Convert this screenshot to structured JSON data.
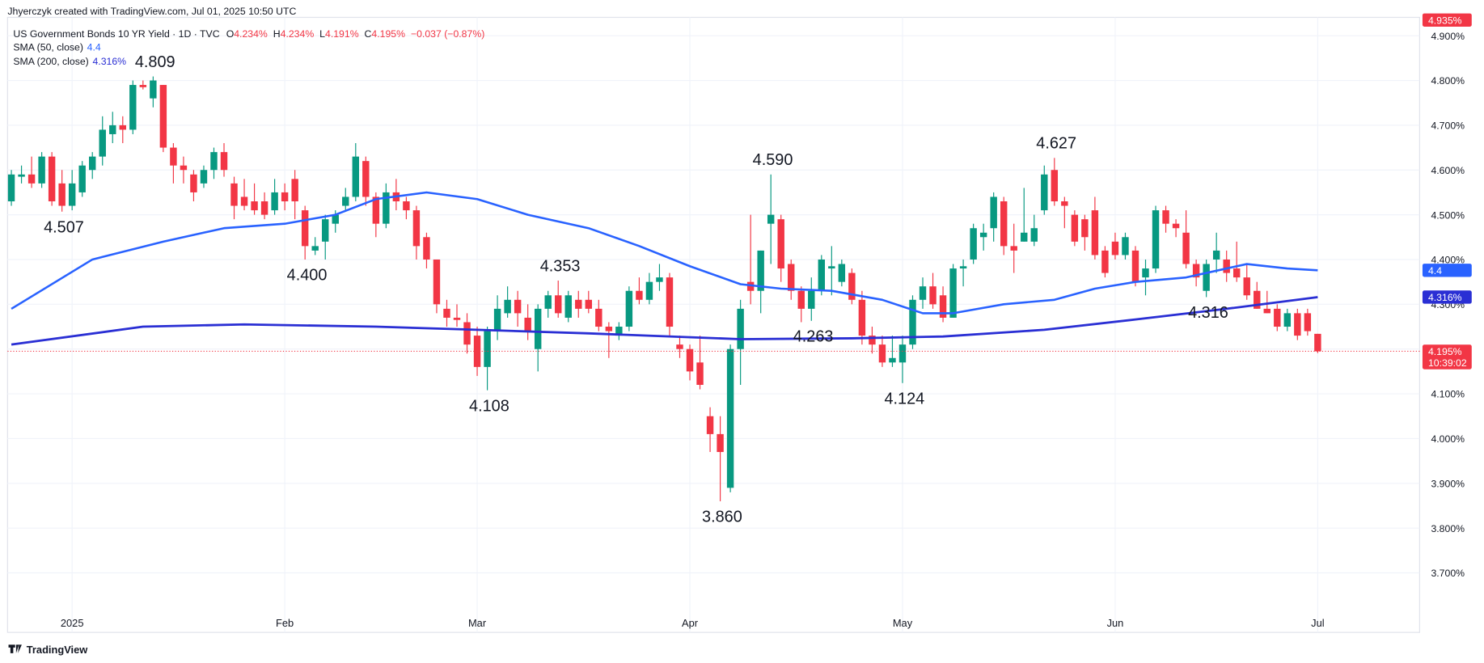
{
  "header": {
    "credit": "Jhyerczyk created with TradingView.com, Jul 01, 2025 10:50 UTC",
    "brand": "TradingView"
  },
  "chart_data": {
    "type": "candlestick",
    "title": "US Government Bonds 10 YR Yield · 1D · TVC",
    "ohlc_legend": [
      {
        "key": "O",
        "value": "4.234%"
      },
      {
        "key": "H",
        "value": "4.234%"
      },
      {
        "key": "L",
        "value": "4.191%"
      },
      {
        "key": "C",
        "value": "4.195%"
      }
    ],
    "change": "−0.037 (−0.87%)",
    "categories": [
      null,
      null,
      null,
      null,
      null,
      null,
      "2025",
      null,
      null,
      null,
      null,
      null,
      null,
      null,
      null,
      null,
      null,
      null,
      null,
      null,
      null,
      null,
      null,
      null,
      null,
      null,
      null,
      "Feb",
      null,
      null,
      null,
      null,
      null,
      null,
      null,
      null,
      null,
      null,
      null,
      null,
      null,
      null,
      null,
      null,
      null,
      null,
      "Mar",
      null,
      null,
      null,
      null,
      null,
      null,
      null,
      null,
      null,
      null,
      null,
      null,
      null,
      null,
      null,
      null,
      null,
      null,
      null,
      null,
      "Apr",
      null,
      null,
      null,
      null,
      null,
      null,
      null,
      null,
      null,
      null,
      null,
      null,
      null,
      null,
      null,
      null,
      null,
      null,
      null,
      null,
      "May",
      null,
      null,
      null,
      null,
      null,
      null,
      null,
      null,
      null,
      null,
      null,
      null,
      null,
      null,
      null,
      null,
      null,
      null,
      null,
      null,
      "Jun",
      null,
      null,
      null,
      null,
      null,
      null,
      null,
      null,
      null,
      null,
      null,
      null,
      null,
      null,
      null,
      null,
      null,
      null,
      null,
      "Jul"
    ],
    "open": [
      4.53,
      4.585,
      4.59,
      4.57,
      4.63,
      4.57,
      4.52,
      4.55,
      4.6,
      4.63,
      4.68,
      4.7,
      4.69,
      4.79,
      4.76,
      4.79,
      4.65,
      4.61,
      4.59,
      4.57,
      4.6,
      4.64,
      4.57,
      4.54,
      4.53,
      4.53,
      4.51,
      4.55,
      4.58,
      4.51,
      4.42,
      4.44,
      4.48,
      4.52,
      4.54,
      4.62,
      4.54,
      4.48,
      4.55,
      4.53,
      4.51,
      4.45,
      4.4,
      4.29,
      4.27,
      4.26,
      4.23,
      4.16,
      4.24,
      4.28,
      4.31,
      4.27,
      4.2,
      4.29,
      4.32,
      4.27,
      4.31,
      4.31,
      4.29,
      4.25,
      4.23,
      4.25,
      4.33,
      4.31,
      4.35,
      4.36,
      4.21,
      4.2,
      4.17,
      4.05,
      4.01,
      3.89,
      4.2,
      4.35,
      4.33,
      4.48,
      4.49,
      4.39,
      4.33,
      4.29,
      4.33,
      4.38,
      4.35,
      4.37,
      4.31,
      4.23,
      4.21,
      4.17,
      4.17,
      4.21,
      4.31,
      4.34,
      4.32,
      4.27,
      4.38,
      4.4,
      4.45,
      4.47,
      4.53,
      4.43,
      4.44,
      4.44,
      4.51,
      4.6,
      4.53,
      4.5,
      4.49,
      4.51,
      4.42,
      4.44,
      4.41,
      4.42,
      4.36,
      4.38,
      4.51,
      4.48,
      4.46,
      4.39,
      4.33,
      4.4,
      4.4,
      4.38,
      4.36,
      4.33,
      4.29,
      4.29,
      4.25,
      4.28,
      4.28,
      4.234
    ],
    "high": [
      4.6,
      4.61,
      4.63,
      4.64,
      4.64,
      4.6,
      4.6,
      4.62,
      4.64,
      4.72,
      4.73,
      4.72,
      4.8,
      4.8,
      4.809,
      4.79,
      4.66,
      4.63,
      4.6,
      4.61,
      4.65,
      4.66,
      4.585,
      4.58,
      4.57,
      4.55,
      4.58,
      4.57,
      4.6,
      4.52,
      4.45,
      4.5,
      4.51,
      4.56,
      4.66,
      4.63,
      4.55,
      4.57,
      4.58,
      4.54,
      4.52,
      4.46,
      4.4,
      4.31,
      4.3,
      4.28,
      4.25,
      4.25,
      4.32,
      4.34,
      4.33,
      4.3,
      4.3,
      4.33,
      4.353,
      4.33,
      4.33,
      4.33,
      4.31,
      4.26,
      4.26,
      4.34,
      4.36,
      4.37,
      4.39,
      4.37,
      4.23,
      4.21,
      4.23,
      4.07,
      4.05,
      4.21,
      4.31,
      4.5,
      4.42,
      4.59,
      4.5,
      4.4,
      4.34,
      4.36,
      4.41,
      4.43,
      4.4,
      4.38,
      4.33,
      4.25,
      4.23,
      4.23,
      4.23,
      4.32,
      4.36,
      4.37,
      4.34,
      4.39,
      4.4,
      4.48,
      4.48,
      4.55,
      4.54,
      4.48,
      4.56,
      4.5,
      4.61,
      4.627,
      4.54,
      4.51,
      4.5,
      4.54,
      4.43,
      4.46,
      4.46,
      4.43,
      4.4,
      4.52,
      4.52,
      4.49,
      4.51,
      4.4,
      4.4,
      4.46,
      4.42,
      4.44,
      4.39,
      4.35,
      4.33,
      4.3,
      4.29,
      4.29,
      4.29,
      4.234
    ],
    "low": [
      4.52,
      4.57,
      4.56,
      4.56,
      4.52,
      4.507,
      4.51,
      4.54,
      4.58,
      4.61,
      4.66,
      4.66,
      4.68,
      4.78,
      4.74,
      4.64,
      4.57,
      4.57,
      4.53,
      4.56,
      4.58,
      4.585,
      4.49,
      4.51,
      4.5,
      4.49,
      4.5,
      4.51,
      4.49,
      4.4,
      4.41,
      4.4,
      4.46,
      4.51,
      4.53,
      4.52,
      4.45,
      4.47,
      4.51,
      4.49,
      4.4,
      4.38,
      4.28,
      4.25,
      4.25,
      4.19,
      4.14,
      4.108,
      4.22,
      4.27,
      4.25,
      4.22,
      4.15,
      4.27,
      4.27,
      4.26,
      4.27,
      4.28,
      4.24,
      4.18,
      4.22,
      4.24,
      4.3,
      4.3,
      4.33,
      4.23,
      4.18,
      4.13,
      4.11,
      3.97,
      3.86,
      3.88,
      4.12,
      4.3,
      4.28,
      4.39,
      4.35,
      4.31,
      4.26,
      4.263,
      4.32,
      4.32,
      4.34,
      4.3,
      4.21,
      4.19,
      4.16,
      4.16,
      4.124,
      4.2,
      4.29,
      4.29,
      4.26,
      4.27,
      4.34,
      4.39,
      4.42,
      4.44,
      4.41,
      4.37,
      4.44,
      4.43,
      4.5,
      4.52,
      4.47,
      4.43,
      4.42,
      4.4,
      4.36,
      4.4,
      4.4,
      4.34,
      4.32,
      4.37,
      4.46,
      4.45,
      4.38,
      4.34,
      4.316,
      4.37,
      4.35,
      4.35,
      4.31,
      4.29,
      4.28,
      4.24,
      4.24,
      4.22,
      4.23,
      4.191
    ],
    "close": [
      4.59,
      4.59,
      4.57,
      4.63,
      4.53,
      4.52,
      4.57,
      4.61,
      4.63,
      4.69,
      4.7,
      4.69,
      4.79,
      4.785,
      4.8,
      4.65,
      4.61,
      4.6,
      4.55,
      4.6,
      4.64,
      4.6,
      4.52,
      4.52,
      4.51,
      4.5,
      4.55,
      4.53,
      4.53,
      4.43,
      4.43,
      4.49,
      4.5,
      4.54,
      4.63,
      4.54,
      4.48,
      4.55,
      4.53,
      4.51,
      4.43,
      4.4,
      4.3,
      4.27,
      4.265,
      4.21,
      4.16,
      4.24,
      4.29,
      4.31,
      4.28,
      4.24,
      4.29,
      4.32,
      4.28,
      4.32,
      4.29,
      4.29,
      4.25,
      4.24,
      4.25,
      4.33,
      4.31,
      4.35,
      4.36,
      4.25,
      4.2,
      4.15,
      4.12,
      4.01,
      3.97,
      4.2,
      4.29,
      4.33,
      4.42,
      4.5,
      4.38,
      4.33,
      4.29,
      4.33,
      4.4,
      4.385,
      4.39,
      4.31,
      4.23,
      4.21,
      4.17,
      4.18,
      4.21,
      4.31,
      4.34,
      4.3,
      4.27,
      4.38,
      4.385,
      4.47,
      4.46,
      4.54,
      4.43,
      4.42,
      4.46,
      4.47,
      4.59,
      4.53,
      4.52,
      4.44,
      4.45,
      4.41,
      4.37,
      4.41,
      4.45,
      4.35,
      4.38,
      4.51,
      4.48,
      4.47,
      4.39,
      4.36,
      4.39,
      4.42,
      4.37,
      4.36,
      4.32,
      4.29,
      4.28,
      4.25,
      4.28,
      4.23,
      4.24,
      4.195
    ],
    "up_color": "#089981",
    "down_color": "#f23645",
    "ylim": [
      3.567,
      4.941
    ],
    "yticks": [
      {
        "value": 3.7,
        "label": "3.700%"
      },
      {
        "value": 3.8,
        "label": "3.800%"
      },
      {
        "value": 3.9,
        "label": "3.900%"
      },
      {
        "value": 4.0,
        "label": "4.000%"
      },
      {
        "value": 4.1,
        "label": "4.100%"
      },
      {
        "value": 4.2,
        "label": "4.200%"
      },
      {
        "value": 4.3,
        "label": "4.300%"
      },
      {
        "value": 4.4,
        "label": "4.400%"
      },
      {
        "value": 4.5,
        "label": "4.500%"
      },
      {
        "value": 4.6,
        "label": "4.600%"
      },
      {
        "value": 4.7,
        "label": "4.700%"
      },
      {
        "value": 4.8,
        "label": "4.800%"
      },
      {
        "value": 4.9,
        "label": "4.900%"
      }
    ],
    "grid": true,
    "sma": [
      {
        "name": "SMA (50, close)",
        "color": "#2962ff",
        "legend_value": "4.4",
        "x": [
          0,
          8,
          15,
          21,
          27,
          32,
          36,
          41,
          46,
          51,
          57,
          62,
          67,
          72,
          76,
          81,
          86,
          90,
          93,
          98,
          103,
          107,
          111,
          116,
          120,
          122,
          126,
          129
        ],
        "values": [
          4.29,
          4.4,
          4.44,
          4.47,
          4.48,
          4.5,
          4.535,
          4.55,
          4.535,
          4.5,
          4.47,
          4.43,
          4.385,
          4.345,
          4.335,
          4.33,
          4.31,
          4.28,
          4.28,
          4.3,
          4.31,
          4.335,
          4.35,
          4.36,
          4.38,
          4.39,
          4.38,
          4.376
        ]
      },
      {
        "name": "SMA (200, close)",
        "color": "#2a2fd4",
        "legend_value": "4.316%",
        "x": [
          0,
          13,
          23,
          36,
          46,
          57,
          72,
          83,
          92,
          102,
          111,
          120,
          129
        ],
        "values": [
          4.21,
          4.25,
          4.255,
          4.25,
          4.243,
          4.235,
          4.222,
          4.224,
          4.228,
          4.243,
          4.266,
          4.29,
          4.316
        ]
      }
    ],
    "annotations": [
      {
        "value": 4.809,
        "label": "4.809"
      },
      {
        "value": 4.507,
        "label": "4.507"
      },
      {
        "value": 4.4,
        "label": "4.400"
      },
      {
        "value": 4.353,
        "label": "4.353"
      },
      {
        "value": 4.108,
        "label": "4.108"
      },
      {
        "value": 4.59,
        "label": "4.590"
      },
      {
        "value": 3.86,
        "label": "3.860"
      },
      {
        "value": 4.263,
        "label": "4.263"
      },
      {
        "value": 4.124,
        "label": "4.124"
      },
      {
        "value": 4.627,
        "label": "4.627"
      },
      {
        "value": 4.316,
        "label": "4.316"
      }
    ],
    "last_price": {
      "value": 4.195,
      "label": "4.195%"
    },
    "countdown": "10:39:02",
    "top_marker": {
      "value": 4.935,
      "label": "4.935%"
    }
  }
}
